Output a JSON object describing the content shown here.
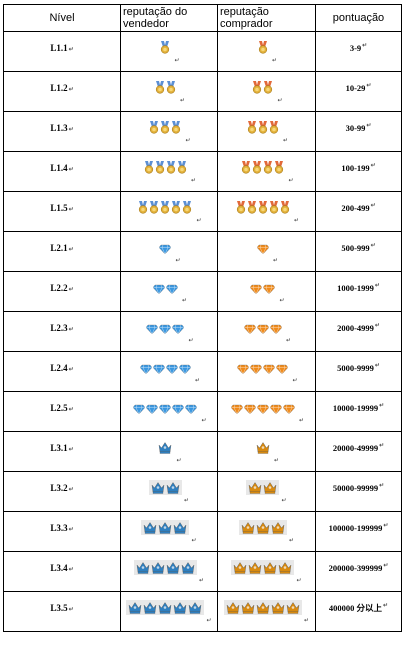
{
  "header": {
    "level": "Nível",
    "seller": "reputação do vendedor",
    "buyer": "reputação comprador",
    "points": "pontuação"
  },
  "colors": {
    "seller_medal_top": "#5b8fd4",
    "buyer_medal_top": "#e2693a",
    "medal_gold": "#e3b13a",
    "seller_diamond": "#3a97e0",
    "buyer_diamond": "#f08a1a",
    "seller_crown": "#2f7fbf",
    "buyer_crown": "#d88a10"
  },
  "rows": [
    {
      "level": "L1.1",
      "icon": "medal",
      "count": 1,
      "points": "3-9",
      "shade": false
    },
    {
      "level": "L1.2",
      "icon": "medal",
      "count": 2,
      "points": "10-29",
      "shade": false
    },
    {
      "level": "L1.3",
      "icon": "medal",
      "count": 3,
      "points": "30-99",
      "shade": false
    },
    {
      "level": "L1.4",
      "icon": "medal",
      "count": 4,
      "points": "100-199",
      "shade": false
    },
    {
      "level": "L1.5",
      "icon": "medal",
      "count": 5,
      "points": "200-499",
      "shade": false
    },
    {
      "level": "L2.1",
      "icon": "diamond",
      "count": 1,
      "points": "500-999",
      "shade": false
    },
    {
      "level": "L2.2",
      "icon": "diamond",
      "count": 2,
      "points": "1000-1999",
      "shade": false
    },
    {
      "level": "L2.3",
      "icon": "diamond",
      "count": 3,
      "points": "2000-4999",
      "shade": false
    },
    {
      "level": "L2.4",
      "icon": "diamond",
      "count": 4,
      "points": "5000-9999",
      "shade": false
    },
    {
      "level": "L2.5",
      "icon": "diamond",
      "count": 5,
      "points": "10000-19999",
      "shade": false
    },
    {
      "level": "L3.1",
      "icon": "crown",
      "count": 1,
      "points": "20000-49999",
      "shade": false
    },
    {
      "level": "L3.2",
      "icon": "crown",
      "count": 2,
      "points": "50000-99999",
      "shade": true
    },
    {
      "level": "L3.3",
      "icon": "crown",
      "count": 3,
      "points": "100000-199999",
      "shade": true
    },
    {
      "level": "L3.4",
      "icon": "crown",
      "count": 4,
      "points": "200000-399999",
      "shade": true
    },
    {
      "level": "L3.5",
      "icon": "crown",
      "count": 5,
      "points": "400000 分以上",
      "shade": true
    }
  ],
  "para_mark": "↵"
}
